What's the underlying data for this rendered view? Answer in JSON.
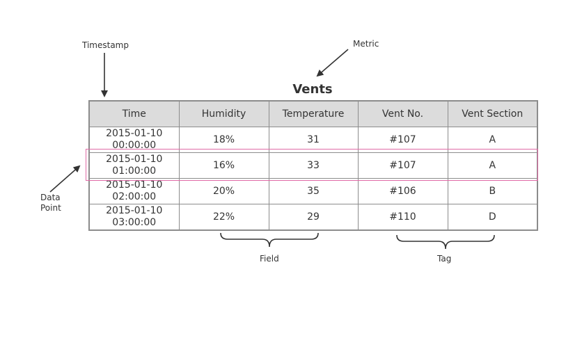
{
  "diagram": {
    "title": "Vents",
    "annotations": {
      "timestamp": "Timestamp",
      "metric": "Metric",
      "data_point_line1": "Data",
      "data_point_line2": "Point",
      "field": "Field",
      "tag": "Tag"
    },
    "highlight_color": "#e06aa6",
    "header_bg": "#dcdcdc",
    "columns": [
      "Time",
      "Humidity",
      "Temperature",
      "Vent No.",
      "Vent Section"
    ],
    "rows": [
      {
        "date": "2015-01-10",
        "time": "00:00:00",
        "humidity": "18%",
        "temperature": "31",
        "vent_no": "#107",
        "vent_section": "A"
      },
      {
        "date": "2015-01-10",
        "time": "01:00:00",
        "humidity": "16%",
        "temperature": "33",
        "vent_no": "#107",
        "vent_section": "A"
      },
      {
        "date": "2015-01-10",
        "time": "02:00:00",
        "humidity": "20%",
        "temperature": "35",
        "vent_no": "#106",
        "vent_section": "B"
      },
      {
        "date": "2015-01-10",
        "time": "03:00:00",
        "humidity": "22%",
        "temperature": "29",
        "vent_no": "#110",
        "vent_section": "D"
      }
    ]
  }
}
